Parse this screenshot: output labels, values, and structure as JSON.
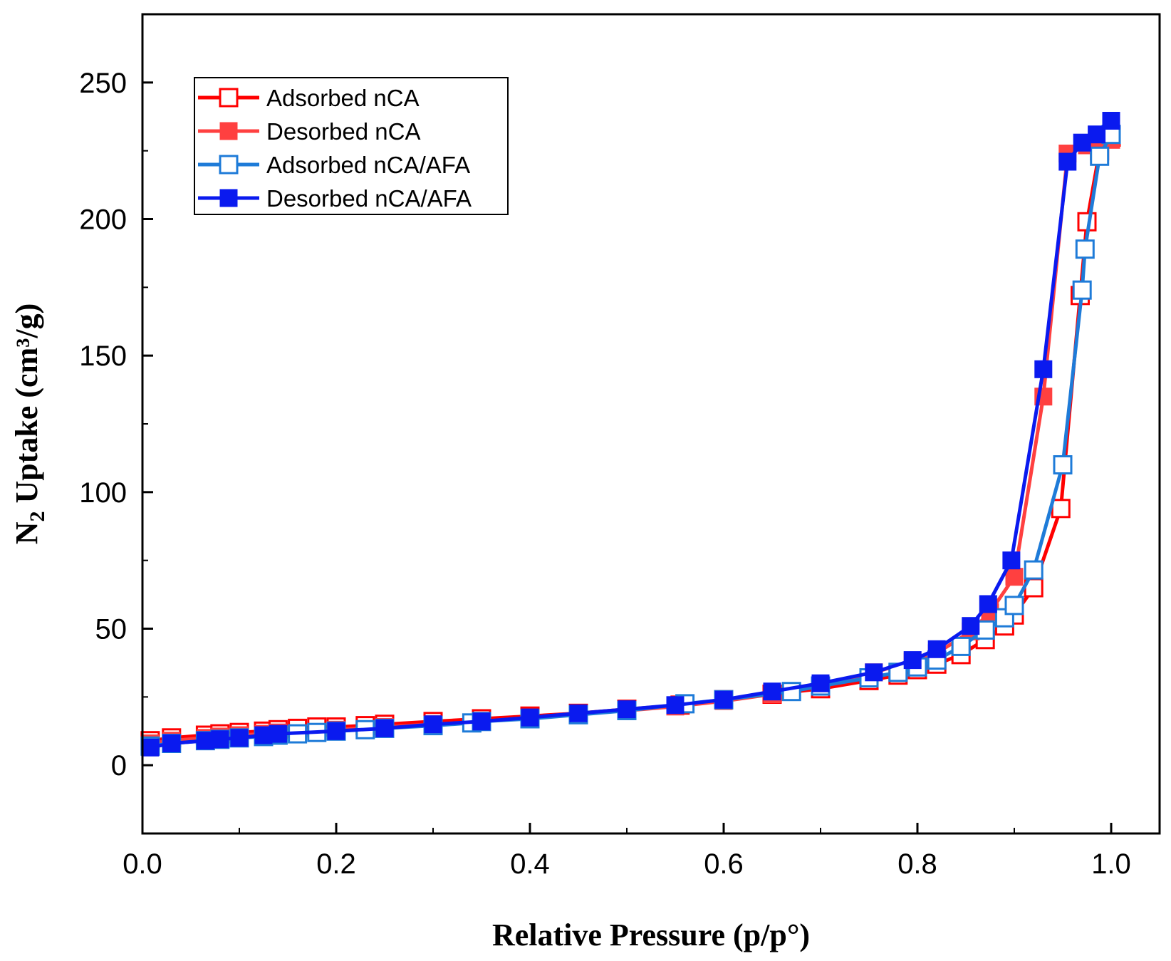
{
  "chart_data": {
    "type": "line",
    "title": "",
    "xlabel": "Relative Pressure (p/p°)",
    "ylabel_main": "N",
    "ylabel_sub": "2",
    "ylabel_rest": " Uptake (cm³/g)",
    "xlim": [
      0.0,
      1.05
    ],
    "ylim": [
      -25,
      275
    ],
    "xticks": [
      0.0,
      0.2,
      0.4,
      0.6,
      0.8,
      1.0
    ],
    "xtick_labels": [
      "0.0",
      "0.2",
      "0.4",
      "0.6",
      "0.8",
      "1.0"
    ],
    "yticks": [
      0,
      50,
      100,
      150,
      200,
      250
    ],
    "ytick_labels": [
      "0",
      "50",
      "100",
      "150",
      "200",
      "250"
    ],
    "legend_position": "top-left",
    "series": [
      {
        "name": "Adsorbed nCA",
        "color": "#ff0000",
        "filled": false,
        "x": [
          0.008,
          0.03,
          0.065,
          0.08,
          0.1,
          0.125,
          0.14,
          0.16,
          0.18,
          0.2,
          0.23,
          0.25,
          0.3,
          0.35,
          0.4,
          0.45,
          0.5,
          0.555,
          0.6,
          0.65,
          0.7,
          0.75,
          0.78,
          0.8,
          0.82,
          0.845,
          0.87,
          0.89,
          0.9,
          0.92,
          0.948,
          0.968,
          0.975,
          0.988,
          1.0
        ],
        "y": [
          9,
          10,
          11,
          11.5,
          12,
          12.5,
          13,
          13.5,
          14,
          14,
          14.5,
          15,
          16,
          17,
          18,
          19,
          20.5,
          22,
          24,
          26,
          28,
          31,
          33,
          35,
          37,
          40.5,
          46,
          51,
          55,
          65,
          94,
          172,
          199,
          225,
          230
        ]
      },
      {
        "name": "Desorbed nCA",
        "color": "#ff4040",
        "filled": true,
        "x": [
          1.0,
          0.988,
          0.975,
          0.955,
          0.93,
          0.9,
          0.875,
          0.855,
          0.82,
          0.795,
          0.755,
          0.7,
          0.65,
          0.6,
          0.55,
          0.5,
          0.45,
          0.4,
          0.35,
          0.3,
          0.25,
          0.2,
          0.14,
          0.125,
          0.1,
          0.08,
          0.065,
          0.03,
          0.008
        ],
        "y": [
          229,
          228,
          227,
          224,
          135,
          69,
          56,
          49,
          41,
          38,
          34,
          29,
          26,
          23.5,
          21.5,
          20,
          19,
          17.5,
          16,
          15,
          14,
          13,
          12,
          11.5,
          11,
          10.5,
          10,
          9,
          8
        ]
      },
      {
        "name": "Adsorbed nCA/AFA",
        "color": "#1e7bd8",
        "filled": false,
        "x": [
          0.008,
          0.03,
          0.065,
          0.08,
          0.1,
          0.125,
          0.14,
          0.16,
          0.18,
          0.2,
          0.23,
          0.25,
          0.3,
          0.34,
          0.35,
          0.4,
          0.45,
          0.5,
          0.56,
          0.6,
          0.67,
          0.7,
          0.75,
          0.78,
          0.8,
          0.82,
          0.845,
          0.87,
          0.89,
          0.9,
          0.92,
          0.95,
          0.97,
          0.973,
          0.988,
          1.0
        ],
        "y": [
          7,
          8,
          9,
          9.5,
          10,
          10.5,
          11,
          11.5,
          12,
          12.5,
          13,
          13.5,
          14.5,
          15.5,
          16,
          17,
          18.5,
          20,
          22.5,
          24,
          27,
          29,
          32,
          34,
          36,
          38.5,
          43.5,
          49.5,
          54,
          58.5,
          71.5,
          110,
          174,
          189,
          223,
          231
        ]
      },
      {
        "name": "Desorbed nCA/AFA",
        "color": "#0a1aef",
        "filled": true,
        "x": [
          1.0,
          0.985,
          0.97,
          0.955,
          0.93,
          0.897,
          0.873,
          0.855,
          0.82,
          0.795,
          0.755,
          0.7,
          0.65,
          0.6,
          0.55,
          0.5,
          0.45,
          0.4,
          0.35,
          0.3,
          0.25,
          0.2,
          0.14,
          0.125,
          0.1,
          0.08,
          0.065,
          0.03,
          0.008
        ],
        "y": [
          236,
          231,
          228,
          221,
          145,
          75,
          59,
          51,
          42.5,
          38.5,
          34,
          30,
          27,
          24,
          22,
          20.5,
          19,
          17.5,
          16,
          15,
          13.5,
          12.5,
          11.5,
          11,
          10,
          9.5,
          9,
          8,
          6.5
        ]
      }
    ]
  }
}
